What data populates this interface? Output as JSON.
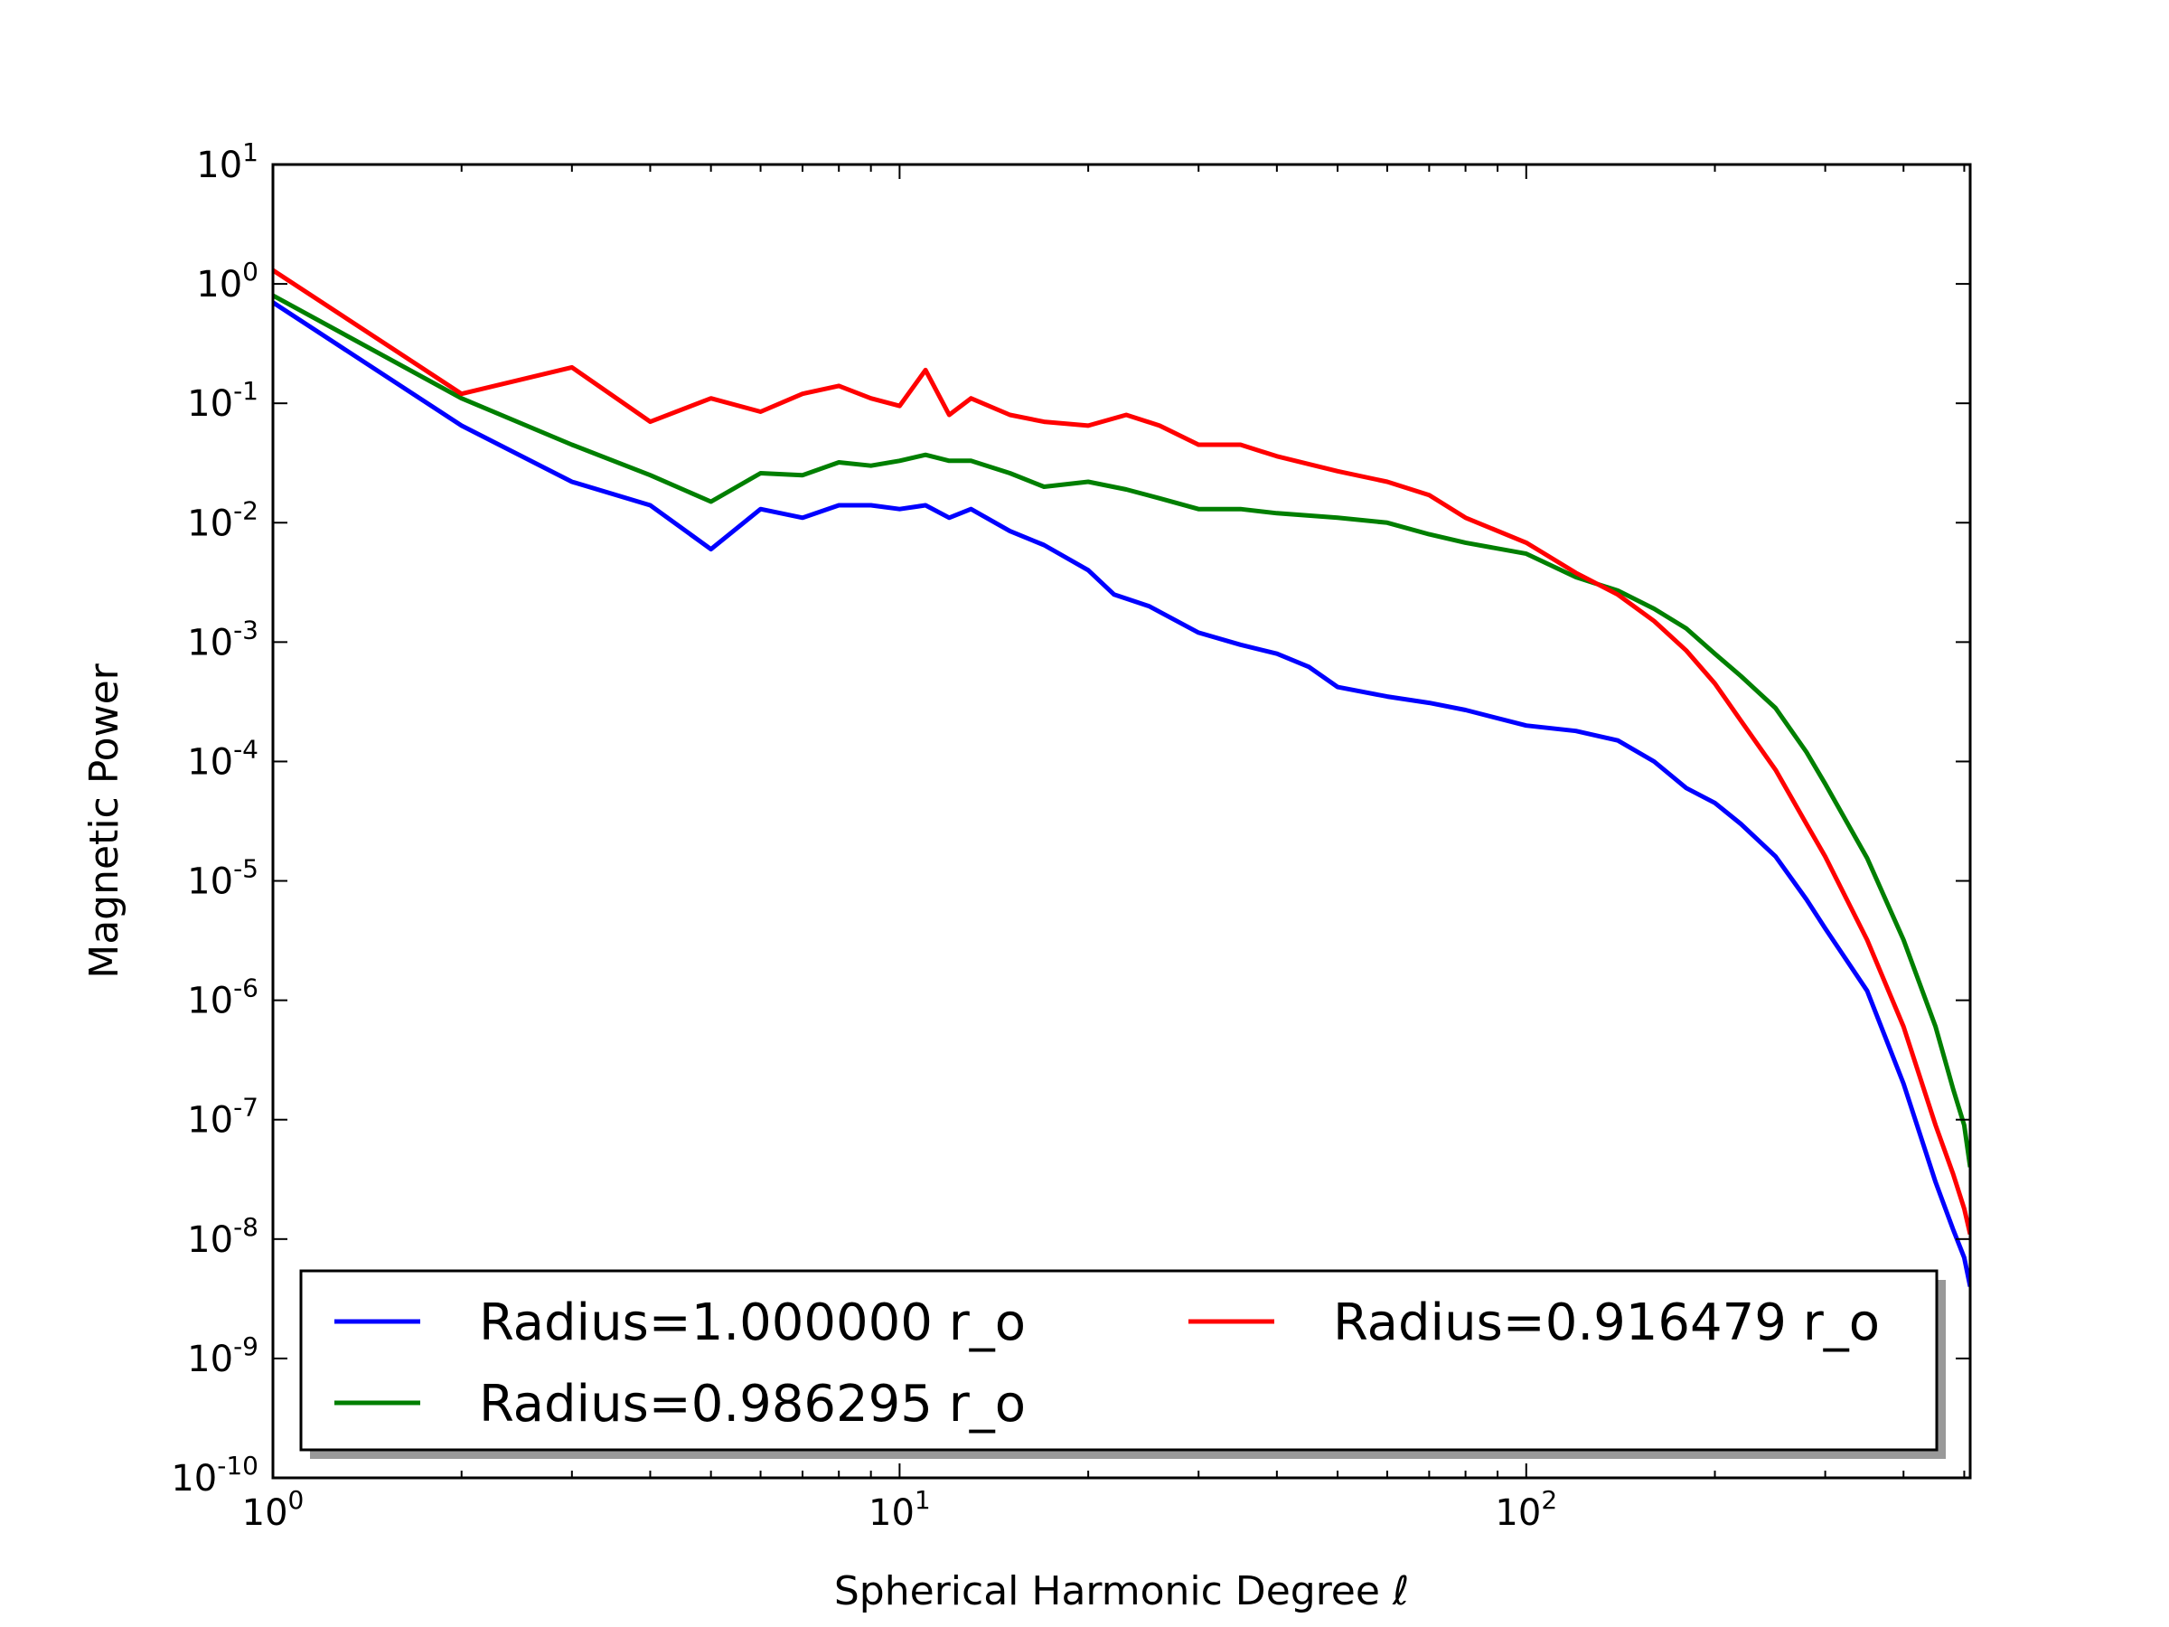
{
  "chart_data": {
    "type": "line",
    "xlabel": "Spherical Harmonic Degree ℓ",
    "ylabel": "Magnetic Power",
    "xscale": "log",
    "yscale": "log",
    "xlim": [
      1,
      511
    ],
    "ylim": [
      1e-10,
      10
    ],
    "x_ticks": [
      {
        "value": 1,
        "base": "10",
        "exp": "0"
      },
      {
        "value": 10,
        "base": "10",
        "exp": "1"
      },
      {
        "value": 100,
        "base": "10",
        "exp": "2"
      }
    ],
    "y_ticks": [
      {
        "value": 10,
        "base": "10",
        "exp": "1"
      },
      {
        "value": 1,
        "base": "10",
        "exp": "0"
      },
      {
        "value": 0.1,
        "base": "10",
        "exp": "-1"
      },
      {
        "value": 0.01,
        "base": "10",
        "exp": "-2"
      },
      {
        "value": 0.001,
        "base": "10",
        "exp": "-3"
      },
      {
        "value": 0.0001,
        "base": "10",
        "exp": "-4"
      },
      {
        "value": 1e-05,
        "base": "10",
        "exp": "-5"
      },
      {
        "value": 1e-06,
        "base": "10",
        "exp": "-6"
      },
      {
        "value": 1e-07,
        "base": "10",
        "exp": "-7"
      },
      {
        "value": 1e-08,
        "base": "10",
        "exp": "-8"
      },
      {
        "value": 1e-09,
        "base": "10",
        "exp": "-9"
      },
      {
        "value": 1e-10,
        "base": "10",
        "exp": "-10"
      }
    ],
    "grid": false,
    "legend_position": "lower-center",
    "legend_columns": 2,
    "series": [
      {
        "name": "Radius=1.000000 r_o",
        "color": "#0000ff",
        "points": [
          [
            1,
            0.7
          ],
          [
            2,
            0.065
          ],
          [
            3,
            0.022
          ],
          [
            4,
            0.014
          ],
          [
            5,
            0.006
          ],
          [
            6,
            0.013
          ],
          [
            7,
            0.011
          ],
          [
            8,
            0.014
          ],
          [
            9,
            0.014
          ],
          [
            10,
            0.013
          ],
          [
            11,
            0.014
          ],
          [
            12,
            0.011
          ],
          [
            13,
            0.013
          ],
          [
            15,
            0.0085
          ],
          [
            17,
            0.0065
          ],
          [
            20,
            0.004
          ],
          [
            22,
            0.0025
          ],
          [
            25,
            0.002
          ],
          [
            30,
            0.0012
          ],
          [
            35,
            0.00095
          ],
          [
            40,
            0.0008
          ],
          [
            45,
            0.00062
          ],
          [
            50,
            0.00042
          ],
          [
            60,
            0.00035
          ],
          [
            70,
            0.00031
          ],
          [
            80,
            0.00027
          ],
          [
            100,
            0.0002
          ],
          [
            120,
            0.00018
          ],
          [
            140,
            0.00015
          ],
          [
            160,
            0.0001
          ],
          [
            180,
            6e-05
          ],
          [
            200,
            4.5e-05
          ],
          [
            220,
            3e-05
          ],
          [
            250,
            1.6e-05
          ],
          [
            280,
            7e-06
          ],
          [
            300,
            4e-06
          ],
          [
            350,
            1.2e-06
          ],
          [
            400,
            2e-07
          ],
          [
            450,
            3e-08
          ],
          [
            480,
            1.2e-08
          ],
          [
            500,
            7e-09
          ],
          [
            511,
            4e-09
          ]
        ]
      },
      {
        "name": "Radius=0.986295 r_o",
        "color": "#007f00",
        "points": [
          [
            1,
            0.8
          ],
          [
            2,
            0.11
          ],
          [
            3,
            0.045
          ],
          [
            4,
            0.025
          ],
          [
            5,
            0.015
          ],
          [
            6,
            0.026
          ],
          [
            7,
            0.025
          ],
          [
            8,
            0.032
          ],
          [
            9,
            0.03
          ],
          [
            10,
            0.033
          ],
          [
            11,
            0.037
          ],
          [
            12,
            0.033
          ],
          [
            13,
            0.033
          ],
          [
            15,
            0.026
          ],
          [
            17,
            0.02
          ],
          [
            20,
            0.022
          ],
          [
            23,
            0.019
          ],
          [
            26,
            0.016
          ],
          [
            30,
            0.013
          ],
          [
            35,
            0.013
          ],
          [
            40,
            0.012
          ],
          [
            50,
            0.011
          ],
          [
            60,
            0.01
          ],
          [
            70,
            0.008
          ],
          [
            80,
            0.0068
          ],
          [
            100,
            0.0055
          ],
          [
            120,
            0.0035
          ],
          [
            140,
            0.0027
          ],
          [
            160,
            0.0019
          ],
          [
            180,
            0.0013
          ],
          [
            200,
            0.0008
          ],
          [
            220,
            0.00052
          ],
          [
            250,
            0.00028
          ],
          [
            280,
            0.00012
          ],
          [
            300,
            6.5e-05
          ],
          [
            350,
            1.55e-05
          ],
          [
            400,
            3.2e-06
          ],
          [
            450,
            6e-07
          ],
          [
            480,
            1.8e-07
          ],
          [
            500,
            9e-08
          ],
          [
            511,
            4e-08
          ]
        ]
      },
      {
        "name": "Radius=0.916479 r_o",
        "color": "#ff0000",
        "points": [
          [
            1,
            1.3
          ],
          [
            2,
            0.12
          ],
          [
            3,
            0.2
          ],
          [
            4,
            0.07
          ],
          [
            5,
            0.11
          ],
          [
            6,
            0.085
          ],
          [
            7,
            0.12
          ],
          [
            8,
            0.14
          ],
          [
            9,
            0.11
          ],
          [
            10,
            0.095
          ],
          [
            11,
            0.19
          ],
          [
            12,
            0.08
          ],
          [
            13,
            0.11
          ],
          [
            15,
            0.08
          ],
          [
            17,
            0.07
          ],
          [
            20,
            0.065
          ],
          [
            23,
            0.08
          ],
          [
            26,
            0.065
          ],
          [
            30,
            0.045
          ],
          [
            35,
            0.045
          ],
          [
            40,
            0.036
          ],
          [
            50,
            0.027
          ],
          [
            60,
            0.022
          ],
          [
            70,
            0.017
          ],
          [
            80,
            0.011
          ],
          [
            100,
            0.0068
          ],
          [
            120,
            0.0038
          ],
          [
            140,
            0.0025
          ],
          [
            160,
            0.0015
          ],
          [
            180,
            0.00085
          ],
          [
            200,
            0.00045
          ],
          [
            220,
            0.00022
          ],
          [
            250,
            8.5e-05
          ],
          [
            280,
            3e-05
          ],
          [
            300,
            1.6e-05
          ],
          [
            350,
            3.2e-06
          ],
          [
            400,
            6e-07
          ],
          [
            450,
            9e-08
          ],
          [
            480,
            3.5e-08
          ],
          [
            500,
            1.8e-08
          ],
          [
            511,
            1.1e-08
          ]
        ]
      }
    ]
  }
}
